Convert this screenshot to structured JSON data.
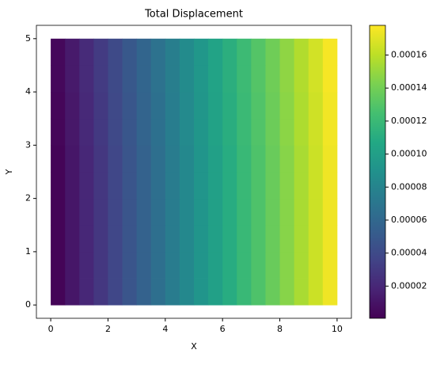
{
  "chart_data": {
    "type": "heatmap",
    "title": "Total Displacement",
    "x_label": "X",
    "y_label": "Y",
    "colormap": "viridis",
    "x": [
      0,
      0.5,
      1,
      1.5,
      2,
      2.5,
      3,
      3.5,
      4,
      4.5,
      5,
      5.5,
      6,
      6.5,
      7,
      7.5,
      8,
      8.5,
      9,
      9.5,
      10
    ],
    "y": [
      0,
      0.5,
      1,
      1.5,
      2,
      2.5,
      3,
      3.5,
      4,
      4.5,
      5
    ],
    "z": [
      [
        2e-06,
        1.1e-05,
        2e-05,
        2.9e-05,
        3.8e-05,
        4.7e-05,
        5.6e-05,
        6.5e-05,
        7.4e-05,
        8.3e-05,
        9.2e-05,
        0.000101,
        0.00011,
        0.000119,
        0.000128,
        0.000137,
        0.000146,
        0.000155,
        0.000164,
        0.000174
      ],
      [
        2e-06,
        1.1e-05,
        2e-05,
        2.9e-05,
        3.8e-05,
        4.7e-05,
        5.6e-05,
        6.5e-05,
        7.4e-05,
        8.3e-05,
        9.2e-05,
        0.000101,
        0.00011,
        0.000119,
        0.000128,
        0.000137,
        0.000146,
        0.000155,
        0.000164,
        0.000174
      ],
      [
        2e-06,
        1.1e-05,
        2e-05,
        2.9e-05,
        3.8e-05,
        4.7e-05,
        5.6e-05,
        6.5e-05,
        7.4e-05,
        8.3e-05,
        9.2e-05,
        0.000101,
        0.00011,
        0.000119,
        0.000128,
        0.000137,
        0.000146,
        0.000155,
        0.000164,
        0.000174
      ],
      [
        2e-06,
        1.1e-05,
        2e-05,
        2.9e-05,
        3.8e-05,
        4.7e-05,
        5.6e-05,
        6.5e-05,
        7.4e-05,
        8.3e-05,
        9.2e-05,
        0.000101,
        0.00011,
        0.000119,
        0.000128,
        0.000137,
        0.000146,
        0.000155,
        0.000164,
        0.000174
      ],
      [
        2e-06,
        1.1e-05,
        2e-05,
        2.9e-05,
        3.8e-05,
        4.7e-05,
        5.6e-05,
        6.5e-05,
        7.4e-05,
        8.3e-05,
        9.2e-05,
        0.000101,
        0.00011,
        0.000119,
        0.000128,
        0.000137,
        0.000146,
        0.000155,
        0.000164,
        0.000174
      ],
      [
        2e-06,
        1.1e-05,
        2e-05,
        2.9e-05,
        3.8e-05,
        4.7e-05,
        5.6e-05,
        6.5e-05,
        7.4e-05,
        8.3e-05,
        9.2e-05,
        0.000101,
        0.00011,
        0.000119,
        0.000128,
        0.000137,
        0.000146,
        0.000155,
        0.000164,
        0.000174
      ],
      [
        3e-06,
        1.2e-05,
        2.1e-05,
        3e-05,
        3.9e-05,
        4.8e-05,
        5.7e-05,
        6.6e-05,
        7.5e-05,
        8.4e-05,
        9.3e-05,
        0.000102,
        0.000111,
        0.00012,
        0.000129,
        0.000138,
        0.000147,
        0.000156,
        0.000165,
        0.000175
      ],
      [
        3e-06,
        1.2e-05,
        2.1e-05,
        3e-05,
        3.9e-05,
        4.8e-05,
        5.7e-05,
        6.6e-05,
        7.5e-05,
        8.4e-05,
        9.3e-05,
        0.000102,
        0.000111,
        0.00012,
        0.000129,
        0.000138,
        0.000147,
        0.000156,
        0.000165,
        0.000175
      ],
      [
        4e-06,
        1.3e-05,
        2.2e-05,
        3.1e-05,
        4e-05,
        4.9e-05,
        5.8e-05,
        6.7e-05,
        7.6e-05,
        8.5e-05,
        9.4e-05,
        0.000103,
        0.000112,
        0.000121,
        0.00013,
        0.000139,
        0.000148,
        0.000157,
        0.000166,
        0.000176
      ],
      [
        4e-06,
        1.3e-05,
        2.2e-05,
        3.1e-05,
        4e-05,
        4.9e-05,
        5.8e-05,
        6.7e-05,
        7.6e-05,
        8.5e-05,
        9.4e-05,
        0.000103,
        0.000112,
        0.000121,
        0.00013,
        0.000139,
        0.000148,
        0.000157,
        0.000166,
        0.000176
      ]
    ],
    "xlim": [
      -0.5,
      10.5
    ],
    "ylim": [
      -0.25,
      5.25
    ],
    "xticks": [
      0,
      2,
      4,
      6,
      8,
      10
    ],
    "yticks": [
      0,
      1,
      2,
      3,
      4,
      5
    ],
    "clim": [
      5e-07,
      0.000178
    ],
    "cticks": [
      2e-05,
      4e-05,
      6e-05,
      8e-05,
      {
        "value": 0.0001,
        "label": "0.00010"
      },
      0.00012,
      0.00014,
      0.00016
    ]
  }
}
